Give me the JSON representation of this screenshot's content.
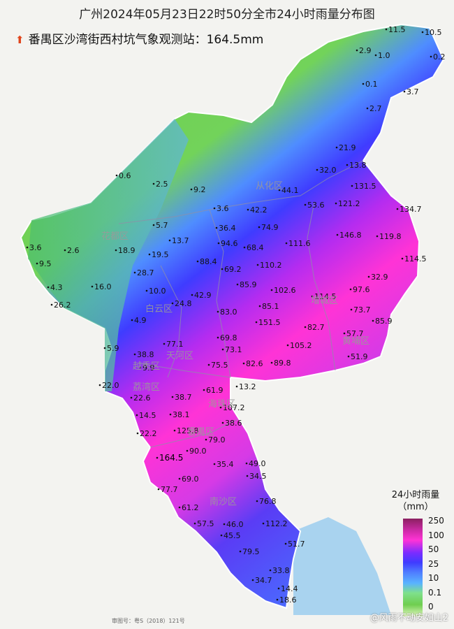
{
  "title": "广州2024年05月23日22时50分全市24小时雨量分布图",
  "subtitle": "番禺区沙湾街西村坑气象观测站：164.5mm",
  "legend": {
    "title_line1": "24小时雨量",
    "title_line2": "（mm）",
    "ticks": [
      "250",
      "100",
      "50",
      "25",
      "10",
      "0.1",
      "0"
    ],
    "colors": [
      "#8a2060",
      "#ff33d6",
      "#3f3cff",
      "#59b3ff",
      "#6fce4f",
      "#a6e58a",
      "#e2f7c0"
    ]
  },
  "districts": [
    "花都区",
    "从化区",
    "白云区",
    "增城区",
    "越秀区",
    "天河区",
    "黄埔区",
    "荔湾区",
    "海珠区",
    "番禺区",
    "南沙区"
  ],
  "stations": [
    "11.5",
    "10.5",
    "2.9",
    "1.0",
    "0.2",
    "0.1",
    "3.7",
    "2.7",
    "21.9",
    "32.0",
    "13.8",
    "0.6",
    "2.5",
    "9.2",
    "44.1",
    "131.5",
    "3.6",
    "42.2",
    "53.6",
    "121.2",
    "134.7",
    "5.7",
    "36.4",
    "74.9",
    "146.8",
    "119.8",
    "13.7",
    "3.6",
    "2.6",
    "18.9",
    "19.5",
    "94.6",
    "68.4",
    "111.6",
    "9.5",
    "88.4",
    "69.2",
    "110.2",
    "114.5",
    "28.7",
    "32.9",
    "16.0",
    "85.9",
    "102.6",
    "114.5",
    "97.6",
    "4.3",
    "10.0",
    "42.9",
    "85.1",
    "26.2",
    "24.8",
    "73.7",
    "83.0",
    "151.5",
    "85.9",
    "4.9",
    "82.7",
    "69.8",
    "57.7",
    "77.1",
    "73.1",
    "105.2",
    "5.9",
    "38.8",
    "9.9",
    "75.5",
    "82.6",
    "89.8",
    "51.9",
    "22.0",
    "13.2",
    "61.9",
    "22.6",
    "38.7",
    "107.2",
    "14.5",
    "38.1",
    "38.6",
    "125.8",
    "22.2",
    "79.0",
    "90.0",
    "164.5",
    "49.0",
    "35.4",
    "34.5",
    "69.0",
    "77.7",
    "76.8",
    "61.2",
    "57.5",
    "46.0",
    "112.2",
    "45.5",
    "51.7",
    "79.5",
    "33.8",
    "34.7",
    "14.4",
    "18.6"
  ],
  "watermark": "@风雨不动安如山2",
  "footer": "审图号：粤S（2018）121号"
}
